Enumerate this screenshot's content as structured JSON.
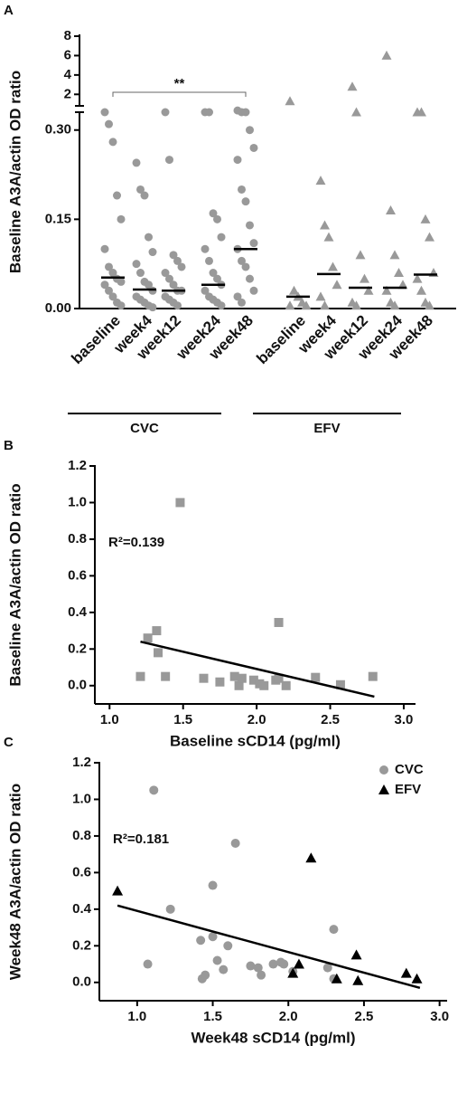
{
  "chart_data": [
    {
      "type": "dotplot",
      "panel": "A",
      "y_label": "Baseline A3A/actin OD ratio",
      "ylim": [
        0,
        8
      ],
      "axis_break": [
        0.33,
        1
      ],
      "yticks": [
        {
          "value": 0,
          "label": "0.00"
        },
        {
          "value": 0.15,
          "label": "0.15"
        },
        {
          "value": 0.3,
          "label": "0.30"
        },
        2,
        4,
        6,
        8
      ],
      "annotation": "**",
      "groups": [
        {
          "name": "CVC",
          "color": "#999999",
          "marker": "circle",
          "categories": [
            "baseline",
            "week4",
            "week12",
            "week24",
            "week48"
          ],
          "points": [
            [
              0.33,
              0.31,
              0.28,
              0.19,
              0.15,
              0.1,
              0.07,
              0.06,
              0.05,
              0.045,
              0.04,
              0.03,
              0.02,
              0.01,
              0.005
            ],
            [
              0.245,
              0.2,
              0.19,
              0.12,
              0.095,
              0.075,
              0.06,
              0.045,
              0.04,
              0.03,
              0.02,
              0.015,
              0.01,
              0.005,
              0.002
            ],
            [
              0.33,
              0.25,
              0.09,
              0.08,
              0.07,
              0.06,
              0.05,
              0.04,
              0.03,
              0.03,
              0.02,
              0.015,
              0.01,
              0.005
            ],
            [
              0.33,
              0.33,
              0.16,
              0.15,
              0.12,
              0.1,
              0.08,
              0.06,
              0.05,
              0.04,
              0.03,
              0.02,
              0.015,
              0.01,
              0.005
            ],
            [
              0.335,
              0.33,
              0.33,
              0.3,
              0.27,
              0.25,
              0.2,
              0.18,
              0.14,
              0.11,
              0.1,
              0.08,
              0.07,
              0.05,
              0.03,
              0.02,
              0.01
            ]
          ],
          "medians": [
            0.052,
            0.032,
            0.03,
            0.04,
            0.1
          ]
        },
        {
          "name": "EFV",
          "color": "#999999",
          "marker": "triangle",
          "categories": [
            "baseline",
            "week4",
            "week12",
            "week24",
            "week48"
          ],
          "points": [
            [
              1.3,
              0.03,
              0.02,
              0.01,
              0.005,
              0.005
            ],
            [
              0.215,
              0.14,
              0.12,
              0.07,
              0.04,
              0.02,
              0.005
            ],
            [
              2.8,
              0.33,
              0.09,
              0.05,
              0.03,
              0.01,
              0.005
            ],
            [
              6.0,
              0.165,
              0.09,
              0.06,
              0.04,
              0.03,
              0.01,
              0.005
            ],
            [
              0.33,
              0.33,
              0.15,
              0.12,
              0.06,
              0.05,
              0.03,
              0.01,
              0.005
            ]
          ],
          "medians": [
            0.02,
            0.058,
            0.035,
            0.035,
            0.057
          ]
        }
      ]
    },
    {
      "type": "scatter",
      "panel": "B",
      "y_label": "Baseline A3A/actin OD ratio",
      "x_label": "Baseline sCD14 (pg/ml)",
      "annotation": "R²=0.139",
      "xlim": [
        0.9,
        3.08
      ],
      "xticks": [
        {
          "value": 1,
          "label": "1.0"
        },
        {
          "value": 1.5,
          "label": "1.5"
        },
        {
          "value": 2,
          "label": "2.0"
        },
        {
          "value": 2.5,
          "label": "2.5"
        },
        {
          "value": 3,
          "label": "3.0"
        }
      ],
      "ylim": [
        -0.1,
        1.2
      ],
      "yticks": [
        {
          "value": 0,
          "label": "0.0"
        },
        {
          "value": 0.2,
          "label": "0.2"
        },
        {
          "value": 0.4,
          "label": "0.4"
        },
        {
          "value": 0.6,
          "label": "0.6"
        },
        {
          "value": 0.8,
          "label": "0.8"
        },
        {
          "value": 1,
          "label": "1.0"
        },
        {
          "value": 1.2,
          "label": "1.2"
        }
      ],
      "series": [
        {
          "color": "#999999",
          "marker": "square",
          "x": [
            1.21,
            1.26,
            1.32,
            1.33,
            1.38,
            1.48,
            1.64,
            1.75,
            1.85,
            1.88,
            1.9,
            1.98,
            2.02,
            2.05,
            2.13,
            2.15,
            2.15,
            2.2,
            2.4,
            2.57,
            2.79
          ],
          "y": [
            0.05,
            0.26,
            0.3,
            0.18,
            0.05,
            1.0,
            0.04,
            0.02,
            0.05,
            0.0,
            0.04,
            0.03,
            0.01,
            0.0,
            0.03,
            0.345,
            0.04,
            0.0,
            0.045,
            0.005,
            0.05
          ]
        }
      ],
      "fit": {
        "x": [
          1.21,
          2.8
        ],
        "y": [
          0.24,
          -0.06
        ]
      }
    },
    {
      "type": "scatter",
      "panel": "C",
      "y_label": "Week48 A3A/actin OD ratio",
      "x_label": "Week48 sCD14 (pg/ml)",
      "annotation": "R²=0.181",
      "legend": "upper right",
      "xlim": [
        0.75,
        3.05
      ],
      "xticks": [
        {
          "value": 1,
          "label": "1.0"
        },
        {
          "value": 1.5,
          "label": "1.5"
        },
        {
          "value": 2,
          "label": "2.0"
        },
        {
          "value": 2.5,
          "label": "2.5"
        },
        {
          "value": 3,
          "label": "3.0"
        }
      ],
      "ylim": [
        -0.1,
        1.2
      ],
      "yticks": [
        {
          "value": 0,
          "label": "0.0"
        },
        {
          "value": 0.2,
          "label": "0.2"
        },
        {
          "value": 0.4,
          "label": "0.4"
        },
        {
          "value": 0.6,
          "label": "0.6"
        },
        {
          "value": 0.8,
          "label": "0.8"
        },
        {
          "value": 1,
          "label": "1.0"
        },
        {
          "value": 1.2,
          "label": "1.2"
        }
      ],
      "series": [
        {
          "name": "CVC",
          "color": "#999999",
          "marker": "circle",
          "x": [
            1.07,
            1.11,
            1.22,
            1.42,
            1.43,
            1.45,
            1.5,
            1.5,
            1.53,
            1.57,
            1.6,
            1.65,
            1.75,
            1.8,
            1.82,
            1.9,
            1.95,
            1.97,
            2.03,
            2.26,
            2.3,
            2.3
          ],
          "y": [
            0.1,
            1.05,
            0.4,
            0.23,
            0.02,
            0.04,
            0.53,
            0.25,
            0.12,
            0.07,
            0.2,
            0.76,
            0.09,
            0.08,
            0.04,
            0.1,
            0.11,
            0.1,
            0.06,
            0.08,
            0.29,
            0.02
          ]
        },
        {
          "name": "EFV",
          "color": "#000000",
          "marker": "triangle",
          "x": [
            0.87,
            2.03,
            2.07,
            2.15,
            2.32,
            2.45,
            2.46,
            2.78,
            2.85
          ],
          "y": [
            0.5,
            0.05,
            0.1,
            0.68,
            0.02,
            0.15,
            0.01,
            0.05,
            0.02
          ]
        }
      ],
      "fit": {
        "x": [
          0.87,
          2.87
        ],
        "y": [
          0.42,
          -0.03
        ]
      }
    }
  ]
}
